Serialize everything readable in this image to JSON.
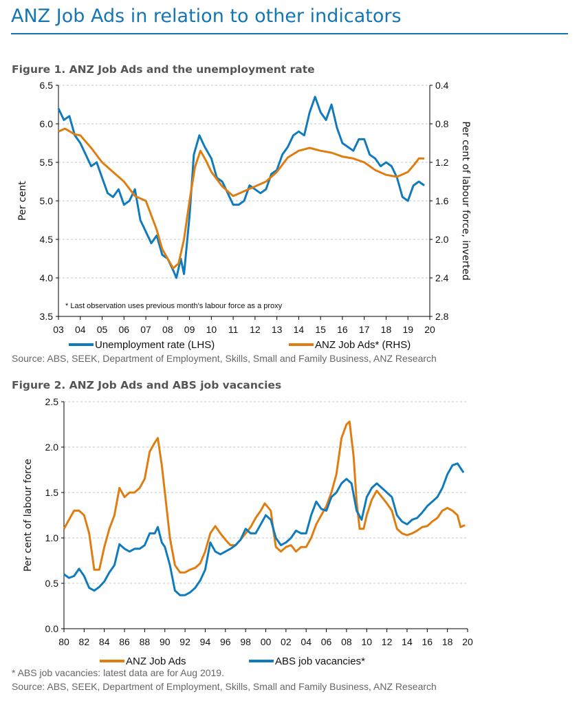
{
  "page_title": "ANZ Job Ads in relation to other indicators",
  "colors": {
    "title": "#1576b6",
    "blue_series": "#0f7bbd",
    "orange_series": "#e07d10"
  },
  "chart_data": [
    {
      "type": "line",
      "title": "Figure 1.  ANZ Job Ads and the unemployment rate",
      "ylabel": "Per cent",
      "y2label": "Per cent of labour force, inverted",
      "ylim": [
        3.5,
        6.5
      ],
      "y2lim": [
        2.8,
        0.4
      ],
      "y2_inverted": true,
      "yticks": [
        "6.5",
        "6.0",
        "5.5",
        "5.0",
        "4.5",
        "4.0",
        "3.5"
      ],
      "y2ticks": [
        "0.4",
        "0.8",
        "1.2",
        "1.6",
        "2.0",
        "2.4",
        "2.8"
      ],
      "xlim": [
        2003,
        2020
      ],
      "xticks": [
        "03",
        "04",
        "05",
        "06",
        "07",
        "08",
        "09",
        "10",
        "11",
        "12",
        "13",
        "14",
        "15",
        "16",
        "17",
        "18",
        "19",
        "20"
      ],
      "grid": true,
      "annotation": "* Last observation uses previous month's labour force as a proxy",
      "legend_position": "bottom",
      "source": "Source: ABS, SEEK, Department of Employment, Skills, Small and Family Business, ANZ Research",
      "series": [
        {
          "name": "Unemployment rate (LHS)",
          "axis": "left",
          "color": "#0f7bbd",
          "x": [
            2003,
            2003.25,
            2003.5,
            2003.75,
            2004,
            2004.25,
            2004.5,
            2004.75,
            2005,
            2005.25,
            2005.5,
            2005.75,
            2006,
            2006.25,
            2006.5,
            2006.75,
            2007,
            2007.25,
            2007.5,
            2007.75,
            2008,
            2008.25,
            2008.4,
            2008.6,
            2008.75,
            2009,
            2009.2,
            2009.45,
            2009.7,
            2010,
            2010.25,
            2010.5,
            2010.75,
            2011,
            2011.25,
            2011.5,
            2011.75,
            2012,
            2012.25,
            2012.5,
            2012.75,
            2013,
            2013.25,
            2013.5,
            2013.75,
            2014,
            2014.25,
            2014.5,
            2014.75,
            2015,
            2015.25,
            2015.5,
            2015.75,
            2016,
            2016.25,
            2016.5,
            2016.75,
            2017,
            2017.25,
            2017.5,
            2017.75,
            2018,
            2018.25,
            2018.5,
            2018.75,
            2019,
            2019.25,
            2019.5,
            2019.75
          ],
          "y": [
            6.2,
            6.05,
            6.1,
            5.85,
            5.75,
            5.6,
            5.45,
            5.5,
            5.3,
            5.1,
            5.05,
            5.15,
            4.95,
            5.0,
            5.15,
            4.75,
            4.6,
            4.45,
            4.55,
            4.3,
            4.25,
            4.1,
            4.0,
            4.25,
            4.05,
            4.8,
            5.6,
            5.85,
            5.7,
            5.55,
            5.3,
            5.25,
            5.1,
            4.95,
            4.95,
            5.0,
            5.2,
            5.15,
            5.1,
            5.15,
            5.35,
            5.4,
            5.6,
            5.7,
            5.85,
            5.9,
            5.85,
            6.15,
            6.35,
            6.15,
            6.05,
            6.25,
            5.95,
            5.75,
            5.7,
            5.65,
            5.8,
            5.8,
            5.6,
            5.55,
            5.45,
            5.5,
            5.45,
            5.3,
            5.05,
            5.0,
            5.2,
            5.25,
            5.2
          ]
        },
        {
          "name": "ANZ Job Ads* (RHS)",
          "axis": "right",
          "color": "#e07d10",
          "x": [
            2003,
            2003.3,
            2003.75,
            2004,
            2004.5,
            2005,
            2005.5,
            2006,
            2006.5,
            2007,
            2007.5,
            2007.75,
            2008,
            2008.25,
            2008.5,
            2008.75,
            2009,
            2009.25,
            2009.5,
            2009.75,
            2010,
            2010.5,
            2011,
            2011.5,
            2012,
            2012.5,
            2013,
            2013.5,
            2014,
            2014.5,
            2015,
            2015.5,
            2016,
            2016.5,
            2017,
            2017.5,
            2018,
            2018.5,
            2019,
            2019.3,
            2019.5,
            2019.75
          ],
          "y": [
            0.88,
            0.85,
            0.91,
            0.92,
            1.05,
            1.2,
            1.3,
            1.4,
            1.55,
            1.6,
            1.9,
            2.1,
            2.2,
            2.3,
            2.25,
            2.0,
            1.6,
            1.25,
            1.08,
            1.18,
            1.3,
            1.45,
            1.55,
            1.5,
            1.45,
            1.4,
            1.3,
            1.15,
            1.08,
            1.05,
            1.08,
            1.1,
            1.14,
            1.16,
            1.2,
            1.28,
            1.33,
            1.35,
            1.3,
            1.22,
            1.16,
            1.16
          ]
        }
      ]
    },
    {
      "type": "line",
      "title": "Figure 2.  ANZ Job Ads and ABS job vacancies",
      "ylabel": "Per cent of labour force",
      "ylim": [
        0,
        2.5
      ],
      "yticks": [
        "2.5",
        "2.0",
        "1.5",
        "1.0",
        "0.5",
        "0.0"
      ],
      "xlim": [
        1980,
        2020
      ],
      "xticks": [
        "80",
        "82",
        "84",
        "86",
        "88",
        "90",
        "92",
        "94",
        "96",
        "98",
        "00",
        "02",
        "04",
        "06",
        "08",
        "10",
        "12",
        "14",
        "16",
        "18",
        "20"
      ],
      "grid": true,
      "legend_position": "bottom",
      "footnote": "* ABS job vacancies: latest data are for Aug 2019.",
      "source": "Source: ABS, SEEK, Department of Employment, Skills, Small and Family Business, ANZ Research",
      "series": [
        {
          "name": "ANZ Job Ads",
          "color": "#e07d10",
          "x": [
            1980,
            1980.5,
            1981,
            1981.5,
            1982,
            1982.5,
            1983,
            1983.5,
            1984,
            1984.5,
            1985,
            1985.5,
            1986,
            1986.5,
            1987,
            1987.5,
            1988,
            1988.5,
            1989,
            1989.3,
            1989.7,
            1990,
            1990.5,
            1991,
            1991.5,
            1992,
            1992.5,
            1993,
            1993.5,
            1994,
            1994.5,
            1995,
            1995.5,
            1996,
            1996.5,
            1997,
            1997.5,
            1998,
            1998.5,
            1999,
            1999.5,
            1999.9,
            2000.5,
            2000.8,
            2001,
            2001.5,
            2002,
            2002.5,
            2003,
            2003.5,
            2004,
            2004.5,
            2005,
            2005.5,
            2006,
            2006.5,
            2007,
            2007.5,
            2008,
            2008.3,
            2008.7,
            2009,
            2009.3,
            2009.7,
            2010,
            2010.5,
            2011,
            2011.5,
            2012,
            2012.5,
            2013,
            2013.5,
            2014,
            2014.5,
            2015,
            2015.5,
            2016,
            2016.5,
            2017,
            2017.5,
            2018,
            2018.5,
            2019,
            2019.3,
            2019.75
          ],
          "y": [
            1.1,
            1.2,
            1.3,
            1.3,
            1.25,
            1.05,
            0.65,
            0.65,
            0.9,
            1.1,
            1.25,
            1.55,
            1.45,
            1.5,
            1.5,
            1.55,
            1.65,
            1.95,
            2.05,
            2.1,
            1.8,
            1.5,
            1.0,
            0.7,
            0.62,
            0.62,
            0.65,
            0.67,
            0.72,
            0.85,
            1.05,
            1.13,
            1.05,
            0.98,
            0.92,
            0.92,
            0.98,
            1.05,
            1.12,
            1.22,
            1.3,
            1.38,
            1.3,
            1.05,
            0.9,
            0.85,
            0.9,
            0.92,
            0.85,
            0.9,
            0.9,
            1.0,
            1.15,
            1.25,
            1.35,
            1.5,
            1.7,
            2.1,
            2.25,
            2.28,
            1.9,
            1.4,
            1.1,
            1.1,
            1.25,
            1.42,
            1.52,
            1.45,
            1.38,
            1.3,
            1.1,
            1.05,
            1.03,
            1.05,
            1.08,
            1.12,
            1.13,
            1.18,
            1.22,
            1.3,
            1.33,
            1.3,
            1.25,
            1.12,
            1.14
          ]
        },
        {
          "name": "ABS job vacancies*",
          "color": "#0f7bbd",
          "x": [
            1980,
            1980.5,
            1981,
            1981.5,
            1982,
            1982.5,
            1983,
            1983.5,
            1984,
            1984.5,
            1985,
            1985.5,
            1986,
            1986.5,
            1987,
            1987.5,
            1988,
            1988.5,
            1989,
            1989.3,
            1989.7,
            1990,
            1990.5,
            1991,
            1991.5,
            1992,
            1992.5,
            1993,
            1993.5,
            1994,
            1994.5,
            1995,
            1995.5,
            1996,
            1996.5,
            1997,
            1997.5,
            1998,
            1998.5,
            1999,
            1999.5,
            2000,
            2000.5,
            2001,
            2001.5,
            2002,
            2002.5,
            2003,
            2003.5,
            2004,
            2004.5,
            2005,
            2005.5,
            2006,
            2006.5,
            2007,
            2007.5,
            2008,
            2008.5,
            2009,
            2009.5,
            2010,
            2010.5,
            2011,
            2011.5,
            2012,
            2012.5,
            2013,
            2013.5,
            2014,
            2014.5,
            2015,
            2015.5,
            2016,
            2016.5,
            2017,
            2017.5,
            2018,
            2018.5,
            2019,
            2019.6
          ],
          "y": [
            0.6,
            0.56,
            0.58,
            0.66,
            0.58,
            0.45,
            0.42,
            0.46,
            0.52,
            0.62,
            0.7,
            0.93,
            0.88,
            0.85,
            0.88,
            0.88,
            0.92,
            1.05,
            1.05,
            1.12,
            0.95,
            0.9,
            0.7,
            0.42,
            0.37,
            0.37,
            0.4,
            0.45,
            0.53,
            0.65,
            0.95,
            0.85,
            0.82,
            0.85,
            0.88,
            0.92,
            0.98,
            1.1,
            1.05,
            1.05,
            1.15,
            1.25,
            1.2,
            1.0,
            0.92,
            0.95,
            1.0,
            1.08,
            1.05,
            1.05,
            1.25,
            1.4,
            1.32,
            1.3,
            1.45,
            1.5,
            1.6,
            1.65,
            1.6,
            1.3,
            1.2,
            1.45,
            1.55,
            1.6,
            1.55,
            1.5,
            1.45,
            1.25,
            1.18,
            1.15,
            1.2,
            1.22,
            1.28,
            1.35,
            1.4,
            1.45,
            1.55,
            1.7,
            1.8,
            1.82,
            1.72
          ]
        }
      ]
    }
  ]
}
